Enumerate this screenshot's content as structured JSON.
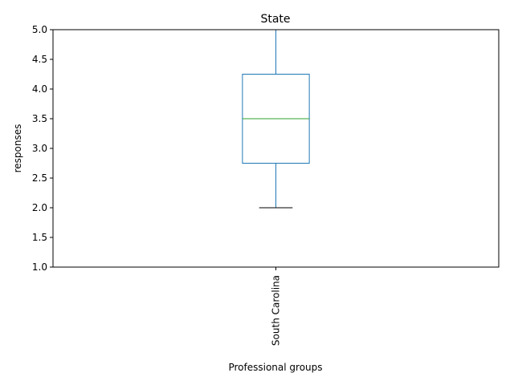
{
  "chart_data": {
    "type": "box",
    "title": "State",
    "xlabel": "Professional groups",
    "ylabel": "responses",
    "ylim": [
      1.0,
      5.0
    ],
    "yticks": [
      1.0,
      1.5,
      2.0,
      2.5,
      3.0,
      3.5,
      4.0,
      4.5,
      5.0
    ],
    "ytick_labels": [
      "1.0",
      "1.5",
      "2.0",
      "2.5",
      "3.0",
      "3.5",
      "4.0",
      "4.5",
      "5.0"
    ],
    "categories": [
      "South Carolina"
    ],
    "boxes": [
      {
        "category": "South Carolina",
        "whisker_low": 2.0,
        "q1": 2.75,
        "median": 3.5,
        "q3": 4.25,
        "whisker_high": 5.0
      }
    ],
    "colors": {
      "box": "#1f77b4",
      "median": "#2ca02c",
      "cap_low": "#000000",
      "axes": "#000000"
    },
    "grid": false,
    "legend": "none"
  }
}
